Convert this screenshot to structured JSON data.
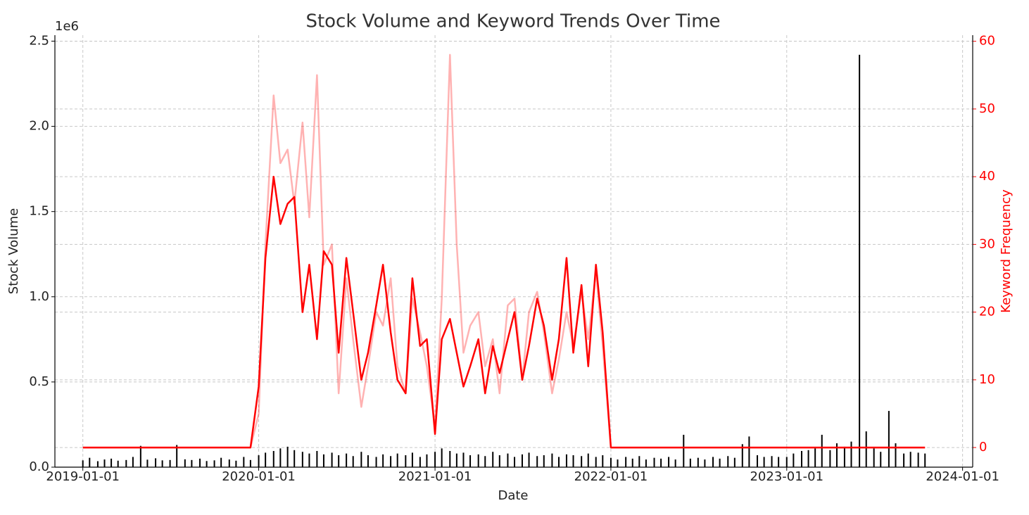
{
  "chart_data": {
    "type": "bar-line",
    "title": "Stock Volume and Keyword Trends Over Time",
    "x_label": "Date",
    "y_label": "Stock Volume",
    "y2_label": "Keyword Frequency",
    "y_offset_label": "1e6",
    "xlim": [
      "2018-11-04",
      "2024-01-22"
    ],
    "xticks": [
      "2019-01-01",
      "2020-01-01",
      "2021-01-01",
      "2022-01-01",
      "2023-01-01",
      "2024-01-01"
    ],
    "ylim": [
      0,
      2535000
    ],
    "yticks": [
      {
        "value": 0,
        "label": "0.0"
      },
      {
        "value": 500000,
        "label": "0.5"
      },
      {
        "value": 1000000,
        "label": "1.0"
      },
      {
        "value": 1500000,
        "label": "1.5"
      },
      {
        "value": 2000000,
        "label": "2.0"
      },
      {
        "value": 2500000,
        "label": "2.5"
      }
    ],
    "y2lim": [
      -2.9,
      60.9
    ],
    "y2ticks": [
      0,
      10,
      20,
      30,
      40,
      50,
      60
    ],
    "y2_color": "#ff0000",
    "grid": true,
    "x": [
      "2019-01-01",
      "2019-01-15",
      "2019-02-01",
      "2019-02-15",
      "2019-03-01",
      "2019-03-15",
      "2019-04-01",
      "2019-04-15",
      "2019-05-01",
      "2019-05-15",
      "2019-06-01",
      "2019-06-15",
      "2019-07-01",
      "2019-07-15",
      "2019-08-01",
      "2019-08-15",
      "2019-09-01",
      "2019-09-15",
      "2019-10-01",
      "2019-10-15",
      "2019-11-01",
      "2019-11-15",
      "2019-12-01",
      "2019-12-15",
      "2020-01-01",
      "2020-01-15",
      "2020-02-01",
      "2020-02-15",
      "2020-03-01",
      "2020-03-15",
      "2020-04-01",
      "2020-04-15",
      "2020-05-01",
      "2020-05-15",
      "2020-06-01",
      "2020-06-15",
      "2020-07-01",
      "2020-07-15",
      "2020-08-01",
      "2020-08-15",
      "2020-09-01",
      "2020-09-15",
      "2020-10-01",
      "2020-10-15",
      "2020-11-01",
      "2020-11-15",
      "2020-12-01",
      "2020-12-15",
      "2021-01-01",
      "2021-01-15",
      "2021-02-01",
      "2021-02-15",
      "2021-03-01",
      "2021-03-15",
      "2021-04-01",
      "2021-04-15",
      "2021-05-01",
      "2021-05-15",
      "2021-06-01",
      "2021-06-15",
      "2021-07-01",
      "2021-07-15",
      "2021-08-01",
      "2021-08-15",
      "2021-09-01",
      "2021-09-15",
      "2021-10-01",
      "2021-10-15",
      "2021-11-01",
      "2021-11-15",
      "2021-12-01",
      "2021-12-15",
      "2022-01-01",
      "2022-01-15",
      "2022-02-01",
      "2022-02-15",
      "2022-03-01",
      "2022-03-15",
      "2022-04-01",
      "2022-04-15",
      "2022-05-01",
      "2022-05-15",
      "2022-06-01",
      "2022-06-15",
      "2022-07-01",
      "2022-07-15",
      "2022-08-01",
      "2022-08-15",
      "2022-09-01",
      "2022-09-15",
      "2022-10-01",
      "2022-10-15",
      "2022-11-01",
      "2022-11-15",
      "2022-12-01",
      "2022-12-15",
      "2023-01-01",
      "2023-01-15",
      "2023-02-01",
      "2023-02-15",
      "2023-03-01",
      "2023-03-15",
      "2023-04-01",
      "2023-04-15",
      "2023-05-01",
      "2023-05-15",
      "2023-06-01",
      "2023-06-15",
      "2023-07-01",
      "2023-07-15",
      "2023-08-01",
      "2023-08-15",
      "2023-09-01",
      "2023-09-15",
      "2023-10-01",
      "2023-10-15"
    ],
    "series": [
      {
        "kind": "bar",
        "color": "#000000",
        "values": [
          40000,
          55000,
          35000,
          45000,
          50000,
          38000,
          42000,
          60000,
          125000,
          44000,
          52000,
          40000,
          42000,
          130000,
          46000,
          42000,
          50000,
          36000,
          40000,
          55000,
          45000,
          38000,
          60000,
          42000,
          70000,
          85000,
          95000,
          110000,
          120000,
          100000,
          90000,
          80000,
          95000,
          75000,
          85000,
          70000,
          80000,
          65000,
          90000,
          70000,
          60000,
          75000,
          65000,
          80000,
          70000,
          85000,
          60000,
          75000,
          90000,
          110000,
          95000,
          80000,
          85000,
          70000,
          75000,
          65000,
          90000,
          70000,
          80000,
          60000,
          75000,
          85000,
          65000,
          70000,
          80000,
          60000,
          75000,
          70000,
          65000,
          80000,
          60000,
          70000,
          55000,
          45000,
          60000,
          50000,
          65000,
          45000,
          55000,
          50000,
          60000,
          45000,
          190000,
          50000,
          55000,
          45000,
          60000,
          50000,
          65000,
          55000,
          135000,
          180000,
          70000,
          60000,
          65000,
          60000,
          60000,
          80000,
          95000,
          100000,
          110000,
          190000,
          100000,
          140000,
          120000,
          150000,
          2420000,
          210000,
          110000,
          90000,
          330000,
          140000,
          80000,
          90000,
          85000,
          80000
        ]
      },
      {
        "kind": "line",
        "axis": "y2",
        "color": "rgba(255,0,0,0.3)",
        "values": [
          0,
          0,
          0,
          0,
          0,
          0,
          0,
          0,
          0,
          0,
          0,
          0,
          0,
          0,
          0,
          0,
          0,
          0,
          0,
          0,
          0,
          0,
          0,
          0,
          5,
          30,
          52,
          42,
          44,
          36,
          48,
          34,
          55,
          27,
          30,
          8,
          25,
          16,
          6,
          12,
          20,
          18,
          25,
          12,
          8,
          22,
          17,
          12,
          3,
          22,
          58,
          30,
          14,
          18,
          20,
          12,
          16,
          8,
          21,
          22,
          10,
          20,
          23,
          17,
          8,
          13,
          20,
          15,
          23,
          16,
          26,
          15,
          0,
          0,
          0,
          0,
          0,
          0,
          0,
          0,
          0,
          0,
          0,
          0,
          0,
          0,
          0,
          0,
          0,
          0,
          0,
          0,
          0,
          0,
          0,
          0,
          0,
          0,
          0,
          0,
          0,
          0,
          0,
          0,
          0,
          0,
          0,
          0,
          0,
          0,
          0,
          0,
          0,
          0,
          0,
          0
        ]
      },
      {
        "kind": "line",
        "axis": "y2",
        "color": "#ff0000",
        "values": [
          0,
          0,
          0,
          0,
          0,
          0,
          0,
          0,
          0,
          0,
          0,
          0,
          0,
          0,
          0,
          0,
          0,
          0,
          0,
          0,
          0,
          0,
          0,
          0,
          9,
          28,
          40,
          33,
          36,
          37,
          20,
          27,
          16,
          29,
          27,
          14,
          28,
          20,
          10,
          14,
          21,
          27,
          17,
          10,
          8,
          25,
          15,
          16,
          2,
          16,
          19,
          14,
          9,
          12,
          16,
          8,
          15,
          11,
          16,
          20,
          10,
          15,
          22,
          18,
          10,
          16,
          28,
          14,
          24,
          12,
          27,
          17,
          0,
          0,
          0,
          0,
          0,
          0,
          0,
          0,
          0,
          0,
          0,
          0,
          0,
          0,
          0,
          0,
          0,
          0,
          0,
          0,
          0,
          0,
          0,
          0,
          0,
          0,
          0,
          0,
          0,
          0,
          0,
          0,
          0,
          0,
          0,
          0,
          0,
          0,
          0,
          0,
          0,
          0,
          0,
          0
        ]
      }
    ]
  }
}
